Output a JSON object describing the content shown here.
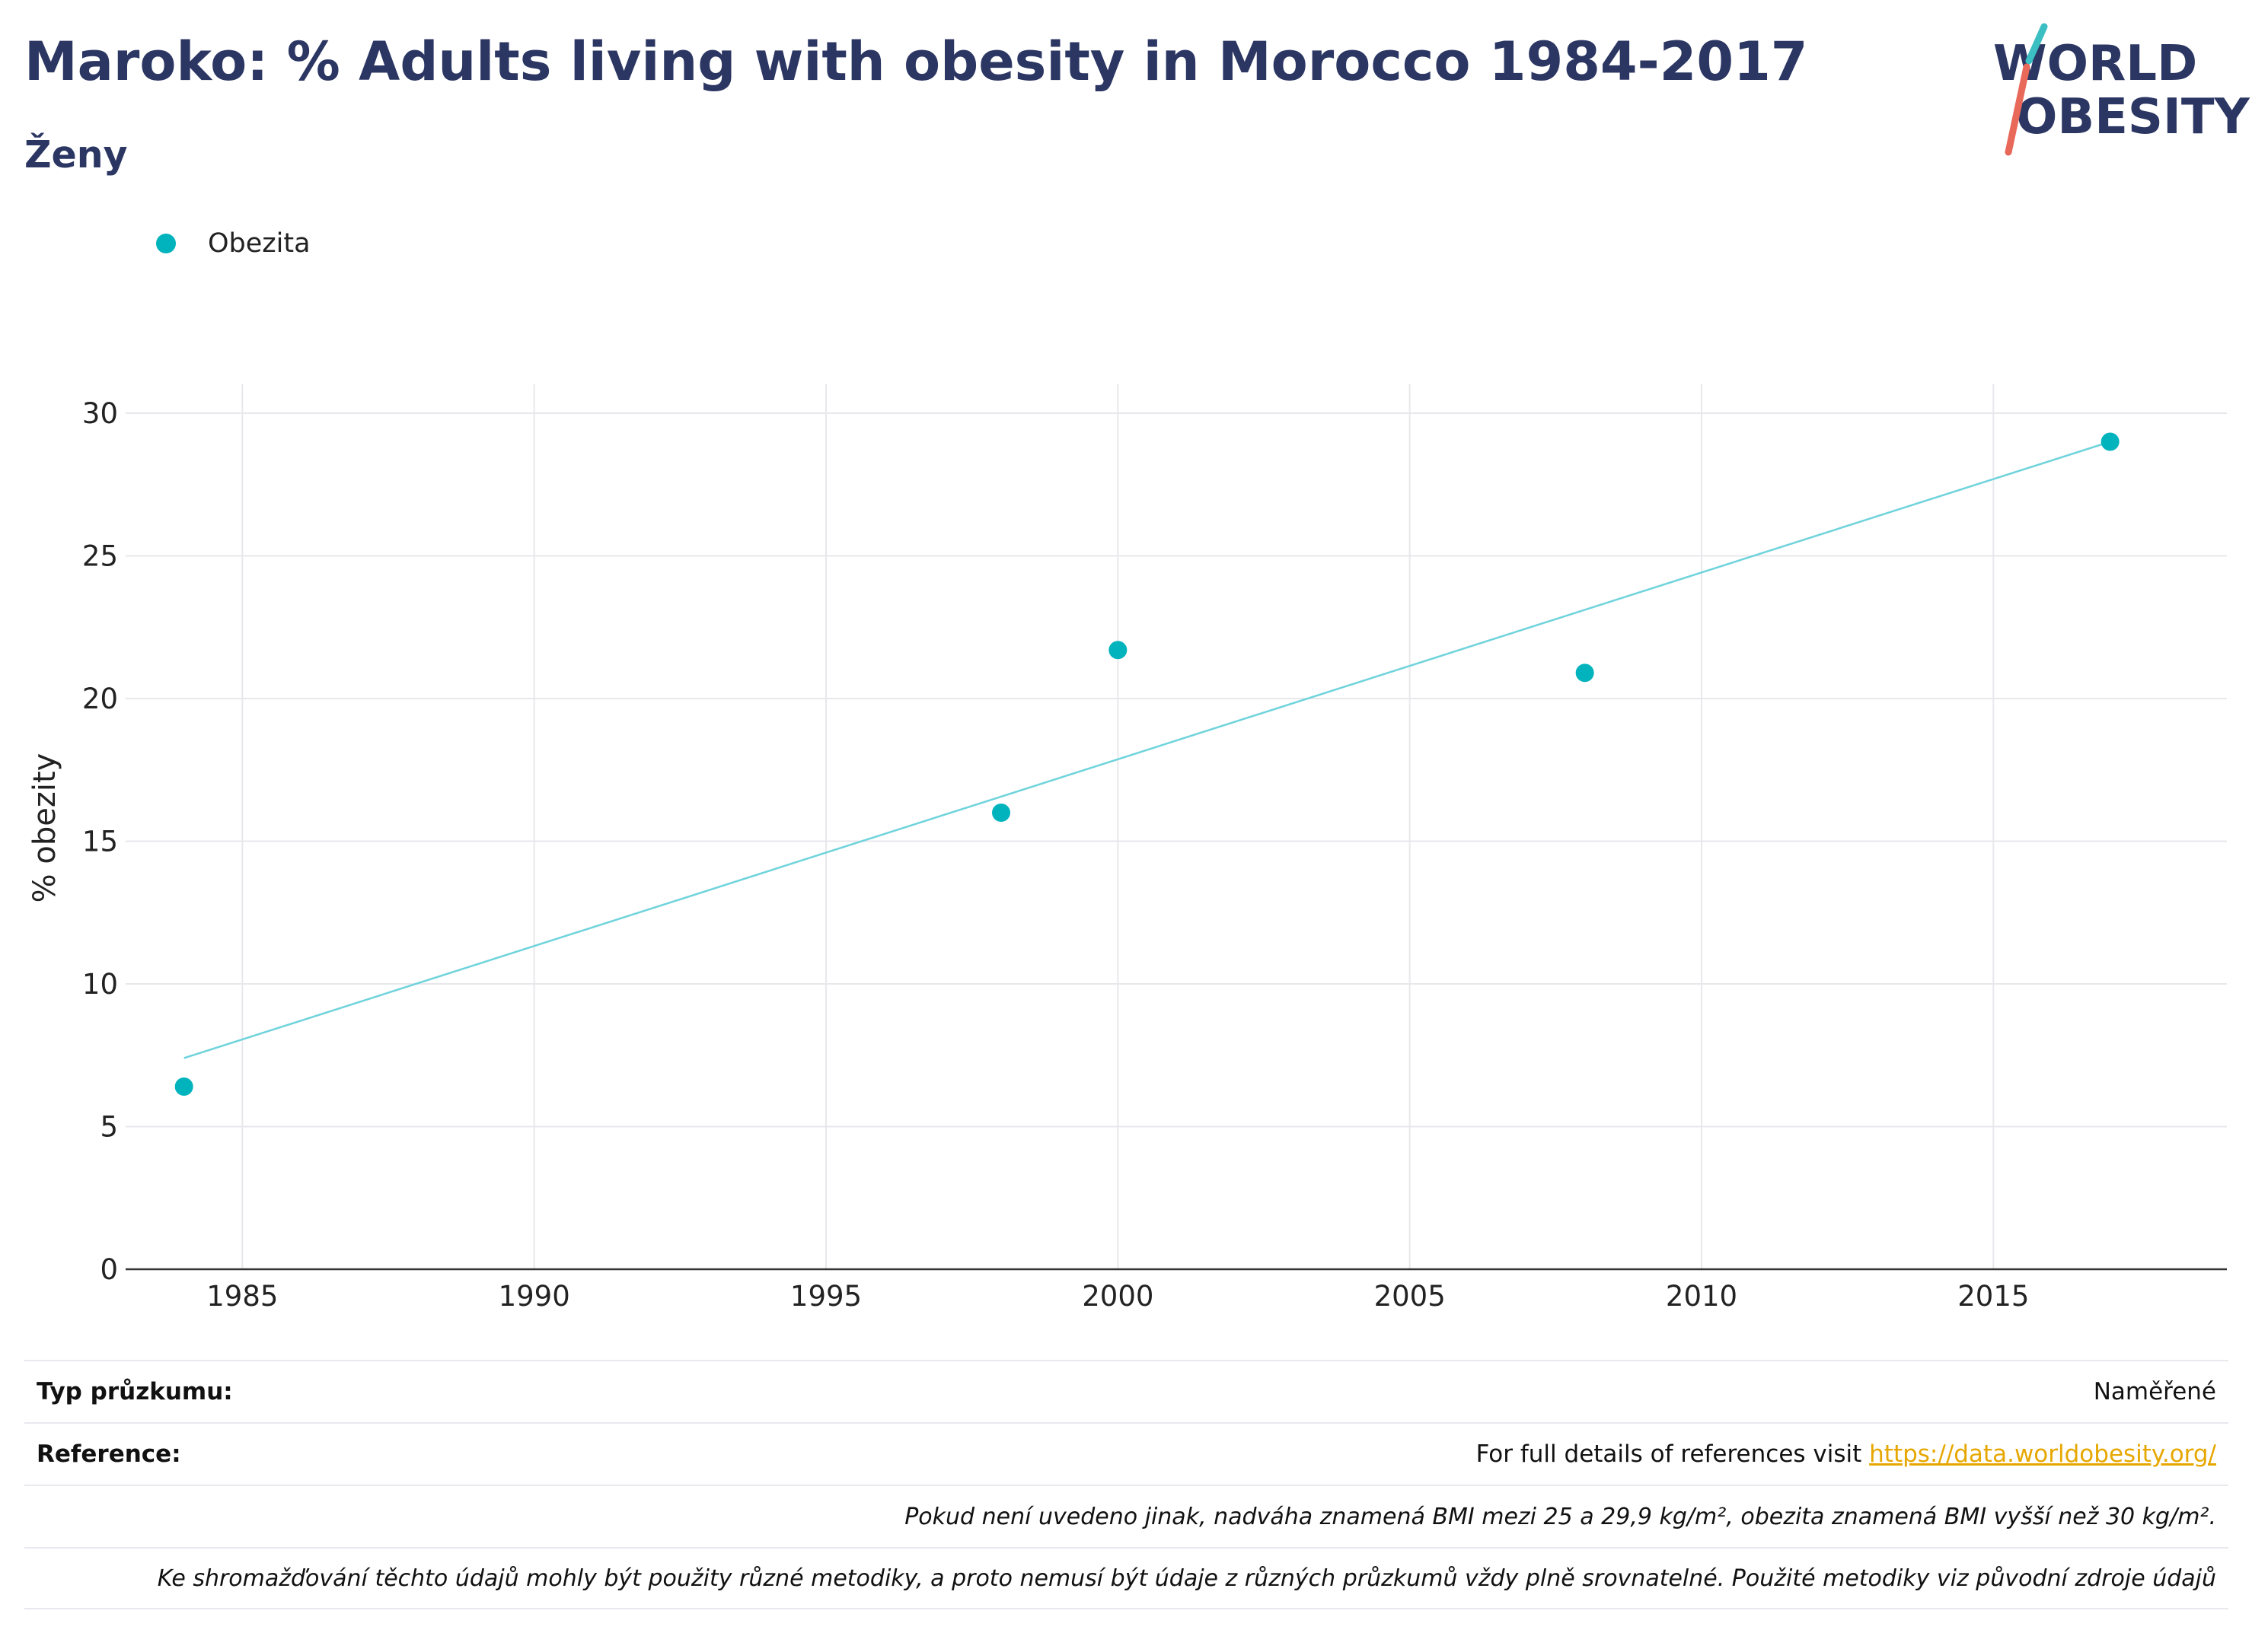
{
  "header": {
    "title": "Maroko: % Adults living with obesity in Morocco 1984-2017",
    "subtitle": "Ženy"
  },
  "logo": {
    "line1": "WORLD",
    "line2": "OBESITY",
    "color_text": "#2b3663",
    "color_slash_top": "#3bbfc2",
    "color_slash_bottom": "#e8685a"
  },
  "legend": {
    "label": "Obezita",
    "color": "#00b3bc"
  },
  "chart_data": {
    "type": "scatter",
    "ylabel": "% obezity",
    "xlabel": "",
    "xlim": [
      1983,
      2019
    ],
    "ylim": [
      0,
      30
    ],
    "x_ticks": [
      1985,
      1990,
      1995,
      2000,
      2005,
      2010,
      2015
    ],
    "y_ticks": [
      0,
      5,
      10,
      15,
      20,
      25,
      30
    ],
    "grid": true,
    "legend_position": "top-left",
    "series": [
      {
        "name": "Obezita",
        "color": "#00b3bc",
        "points": [
          {
            "x": 1984,
            "y": 6.4
          },
          {
            "x": 1998,
            "y": 16.0
          },
          {
            "x": 2000,
            "y": 21.7
          },
          {
            "x": 2008,
            "y": 20.9
          },
          {
            "x": 2017,
            "y": 29.0
          }
        ]
      }
    ],
    "trendline": {
      "color": "#6fd3dc",
      "points": [
        {
          "x": 1984,
          "y": 7.4
        },
        {
          "x": 2017,
          "y": 29.0
        }
      ]
    }
  },
  "info": {
    "survey_type_label": "Typ průzkumu:",
    "survey_type_value": "Naměřené",
    "reference_label": "Reference:",
    "reference_text": "For full details of references visit ",
    "reference_link": "https://data.worldobesity.org/",
    "note1": "Pokud není uvedeno jinak, nadváha znamená BMI mezi 25 a 29,9 kg/m², obezita znamená BMI vyšší než 30 kg/m².",
    "note2": "Ke shromažďování těchto údajů mohly být použity různé metodiky, a proto nemusí být údaje z různých průzkumů vždy plně srovnatelné. Použité metodiky viz původní zdroje údajů"
  }
}
